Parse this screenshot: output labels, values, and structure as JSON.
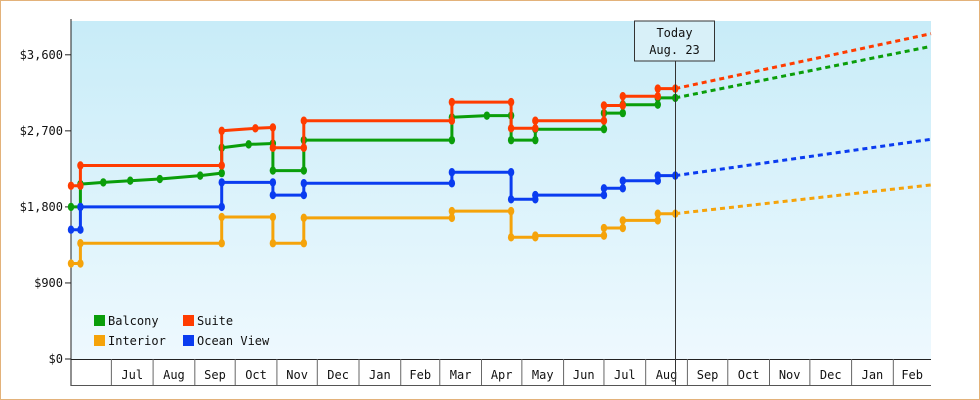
{
  "chart_data": {
    "type": "line",
    "title": "",
    "xlabel": "",
    "ylabel": "",
    "ylim": [
      0,
      3600
    ],
    "y_ticks": [
      "$0",
      "$900",
      "$1,800",
      "$2,700",
      "$3,600"
    ],
    "x_months": [
      "Jul",
      "Aug",
      "Sep",
      "Oct",
      "Nov",
      "Dec",
      "Jan",
      "Feb",
      "Mar",
      "Apr",
      "May",
      "Jun",
      "Jul",
      "Aug",
      "Sep",
      "Oct",
      "Nov",
      "Dec",
      "Jan",
      "Feb"
    ],
    "today": {
      "line1": "Today",
      "line2": "Aug. 23",
      "date": "2024-08-23"
    },
    "grid": false,
    "legend_position": "bottom-left",
    "series": [
      {
        "name": "Balcony",
        "color": "#0a9e0a",
        "points": [
          [
            "2023-06-01",
            1800
          ],
          [
            "2023-06-08",
            1800
          ],
          [
            "2023-06-08",
            2070
          ],
          [
            "2023-06-25",
            2090
          ],
          [
            "2023-07-15",
            2110
          ],
          [
            "2023-08-06",
            2130
          ],
          [
            "2023-09-05",
            2170
          ],
          [
            "2023-09-21",
            2200
          ],
          [
            "2023-09-21",
            2500
          ],
          [
            "2023-10-11",
            2540
          ],
          [
            "2023-10-29",
            2550
          ],
          [
            "2023-10-29",
            2230
          ],
          [
            "2023-11-21",
            2230
          ],
          [
            "2023-11-21",
            2590
          ],
          [
            "2024-03-10",
            2590
          ],
          [
            "2024-03-10",
            2860
          ],
          [
            "2024-04-05",
            2880
          ],
          [
            "2024-04-23",
            2880
          ],
          [
            "2024-04-23",
            2590
          ],
          [
            "2024-05-11",
            2590
          ],
          [
            "2024-05-11",
            2720
          ],
          [
            "2024-07-01",
            2720
          ],
          [
            "2024-07-01",
            2910
          ],
          [
            "2024-07-15",
            2910
          ],
          [
            "2024-07-15",
            3010
          ],
          [
            "2024-08-10",
            3010
          ],
          [
            "2024-08-10",
            3090
          ],
          [
            "2024-08-23",
            3090
          ]
        ],
        "projection": [
          [
            "2024-08-23",
            3090
          ],
          [
            "2025-03-01",
            3700
          ]
        ]
      },
      {
        "name": "Suite",
        "color": "#ff3c00",
        "points": [
          [
            "2023-06-01",
            2050
          ],
          [
            "2023-06-08",
            2050
          ],
          [
            "2023-06-08",
            2290
          ],
          [
            "2023-09-21",
            2290
          ],
          [
            "2023-09-21",
            2700
          ],
          [
            "2023-10-16",
            2730
          ],
          [
            "2023-10-29",
            2740
          ],
          [
            "2023-10-29",
            2500
          ],
          [
            "2023-11-21",
            2500
          ],
          [
            "2023-11-21",
            2820
          ],
          [
            "2024-03-10",
            2820
          ],
          [
            "2024-03-10",
            3040
          ],
          [
            "2024-04-23",
            3040
          ],
          [
            "2024-04-23",
            2730
          ],
          [
            "2024-05-11",
            2730
          ],
          [
            "2024-05-11",
            2820
          ],
          [
            "2024-07-01",
            2820
          ],
          [
            "2024-07-01",
            3000
          ],
          [
            "2024-07-15",
            3000
          ],
          [
            "2024-07-15",
            3110
          ],
          [
            "2024-08-10",
            3110
          ],
          [
            "2024-08-10",
            3200
          ],
          [
            "2024-08-23",
            3200
          ]
        ],
        "projection": [
          [
            "2024-08-23",
            3200
          ],
          [
            "2025-03-01",
            3850
          ]
        ]
      },
      {
        "name": "Interior",
        "color": "#f5a30a",
        "points": [
          [
            "2023-06-01",
            1130
          ],
          [
            "2023-06-08",
            1130
          ],
          [
            "2023-06-08",
            1370
          ],
          [
            "2023-09-21",
            1370
          ],
          [
            "2023-09-21",
            1680
          ],
          [
            "2023-10-29",
            1680
          ],
          [
            "2023-10-29",
            1370
          ],
          [
            "2023-11-21",
            1370
          ],
          [
            "2023-11-21",
            1670
          ],
          [
            "2024-03-10",
            1670
          ],
          [
            "2024-03-10",
            1750
          ],
          [
            "2024-04-23",
            1750
          ],
          [
            "2024-04-23",
            1440
          ],
          [
            "2024-05-11",
            1440
          ],
          [
            "2024-05-11",
            1460
          ],
          [
            "2024-07-01",
            1460
          ],
          [
            "2024-07-01",
            1550
          ],
          [
            "2024-07-15",
            1550
          ],
          [
            "2024-07-15",
            1640
          ],
          [
            "2024-08-10",
            1640
          ],
          [
            "2024-08-10",
            1720
          ],
          [
            "2024-08-23",
            1720
          ]
        ],
        "projection": [
          [
            "2024-08-23",
            1720
          ],
          [
            "2025-03-01",
            2060
          ]
        ]
      },
      {
        "name": "Ocean View",
        "color": "#0a3cf0",
        "points": [
          [
            "2023-06-01",
            1530
          ],
          [
            "2023-06-08",
            1530
          ],
          [
            "2023-06-08",
            1800
          ],
          [
            "2023-09-21",
            1800
          ],
          [
            "2023-09-21",
            2090
          ],
          [
            "2023-10-29",
            2090
          ],
          [
            "2023-10-29",
            1940
          ],
          [
            "2023-11-21",
            1940
          ],
          [
            "2023-11-21",
            2080
          ],
          [
            "2024-03-10",
            2080
          ],
          [
            "2024-03-10",
            2210
          ],
          [
            "2024-04-23",
            2210
          ],
          [
            "2024-04-23",
            1890
          ],
          [
            "2024-05-11",
            1890
          ],
          [
            "2024-05-11",
            1940
          ],
          [
            "2024-07-01",
            1940
          ],
          [
            "2024-07-01",
            2020
          ],
          [
            "2024-07-15",
            2020
          ],
          [
            "2024-07-15",
            2110
          ],
          [
            "2024-08-10",
            2110
          ],
          [
            "2024-08-10",
            2170
          ],
          [
            "2024-08-23",
            2170
          ]
        ],
        "projection": [
          [
            "2024-08-23",
            2170
          ],
          [
            "2025-03-01",
            2600
          ]
        ]
      }
    ],
    "legend": [
      {
        "name": "Balcony",
        "color": "#0a9e0a"
      },
      {
        "name": "Suite",
        "color": "#ff3c00"
      },
      {
        "name": "Interior",
        "color": "#f5a30a"
      },
      {
        "name": "Ocean View",
        "color": "#0a3cf0"
      }
    ],
    "colors": {
      "background_top": "#c8ecf8",
      "background_bottom": "#eef9fe",
      "frame_border": "#e3b27a",
      "axis": "#222222",
      "callout_bg": "#d8f0f8"
    }
  }
}
